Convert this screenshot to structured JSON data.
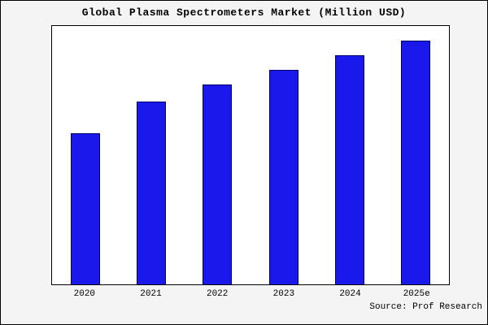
{
  "chart_data": {
    "type": "bar",
    "title": "Global Plasma Spectrometers Market (Million USD)",
    "xlabel": "",
    "ylabel": "",
    "categories": [
      "2020",
      "2021",
      "2022",
      "2023",
      "2024",
      "2025e"
    ],
    "values": [
      62,
      75,
      82,
      88,
      94,
      100
    ],
    "ylim": [
      0,
      106
    ],
    "grid": false,
    "legend": "none",
    "bar_color": "#1a18ea",
    "bar_border_color": "#000066",
    "plot_background": "#ffffff",
    "figure_background": "#f4f4f4",
    "source": "Source: Prof Research"
  }
}
